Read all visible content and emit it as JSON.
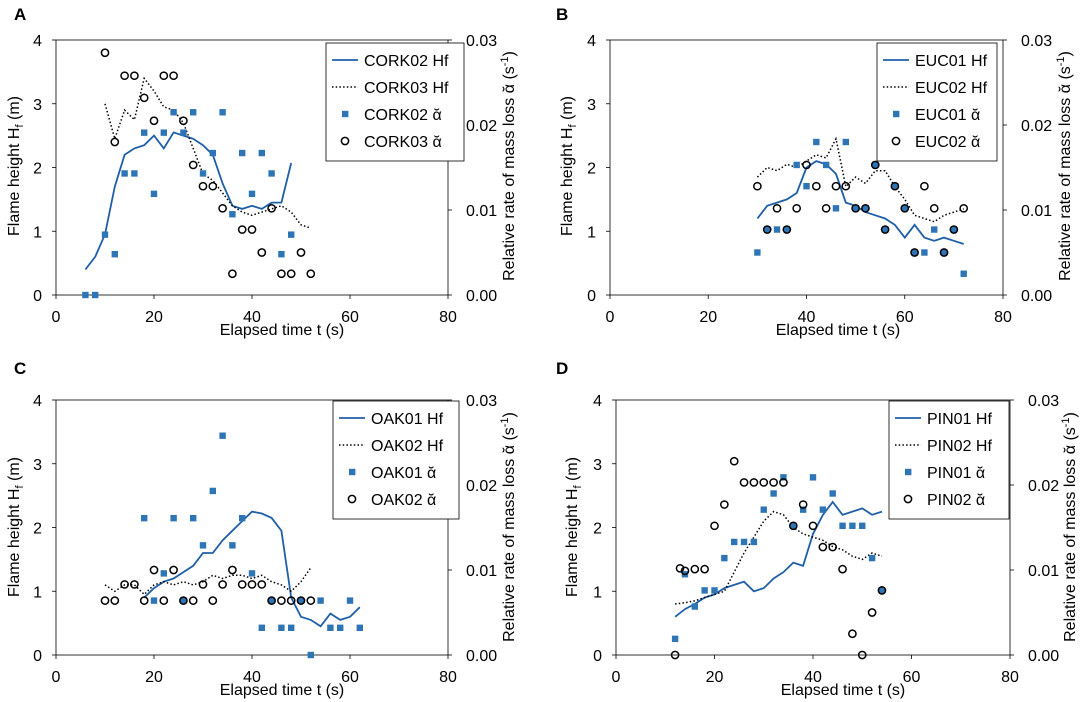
{
  "chart_data": [
    {
      "panel_label": "A",
      "type": "line+scatter",
      "xlabel": "Elapsed time t (s)",
      "ylabel_left": "Flame height H",
      "ylabel_left_sub": "f",
      "ylabel_left_unit": " (m)",
      "ylabel_right": "Relative rate of mass loss ᾰ (s",
      "ylabel_right_sup": "-1",
      "ylabel_right_end": ")",
      "xlim": [
        0,
        80
      ],
      "xticks": [
        0,
        20,
        40,
        60,
        80
      ],
      "ylim_left": [
        0,
        4
      ],
      "yticks_left": [
        0,
        1,
        2,
        3,
        4
      ],
      "ylim_right": [
        0,
        0.03
      ],
      "yticks_right": [
        "0.00",
        "0.01",
        "0.02",
        "0.03"
      ],
      "legend": [
        "CORK02 Hf",
        "CORK03 Hf",
        "CORK02 ᾰ",
        "CORK03 ᾰ"
      ],
      "series": [
        {
          "name": "CORK02 Hf",
          "style": "solid",
          "axis": "left",
          "x": [
            6,
            8,
            10,
            12,
            14,
            16,
            18,
            20,
            22,
            24,
            26,
            28,
            30,
            32,
            34,
            36,
            38,
            40,
            42,
            44,
            46,
            48
          ],
          "y": [
            0.4,
            0.6,
            0.95,
            1.7,
            2.2,
            2.3,
            2.35,
            2.5,
            2.3,
            2.55,
            2.5,
            2.45,
            2.35,
            2.2,
            1.75,
            1.4,
            1.35,
            1.4,
            1.35,
            1.45,
            1.45,
            2.07
          ]
        },
        {
          "name": "CORK03 Hf",
          "style": "dotted",
          "axis": "left",
          "x": [
            10,
            12,
            14,
            16,
            18,
            20,
            22,
            24,
            26,
            28,
            30,
            32,
            34,
            36,
            38,
            40,
            42,
            44,
            46,
            48,
            50,
            52
          ],
          "y": [
            3.0,
            2.45,
            2.9,
            2.75,
            3.4,
            3.2,
            2.95,
            2.9,
            2.7,
            2.3,
            1.9,
            1.8,
            1.6,
            1.4,
            1.3,
            1.25,
            1.3,
            1.35,
            1.4,
            1.3,
            1.1,
            1.05
          ]
        },
        {
          "name": "CORK02 ᾰ",
          "style": "square",
          "axis": "right",
          "x": [
            6,
            8,
            10,
            12,
            14,
            16,
            18,
            20,
            22,
            24,
            26,
            28,
            30,
            32,
            34,
            36,
            38,
            40,
            42,
            44,
            46,
            48
          ],
          "y": [
            0,
            0,
            0.0071,
            0.0048,
            0.0143,
            0.0143,
            0.0191,
            0.0119,
            0.0191,
            0.0215,
            0.0191,
            0.0215,
            0.0143,
            0.0167,
            0.0215,
            0.0095,
            0.0167,
            0.0119,
            0.0167,
            0.0143,
            0.0048,
            0.0071
          ]
        },
        {
          "name": "CORK03 ᾰ",
          "style": "circle",
          "axis": "right",
          "x": [
            10,
            12,
            14,
            16,
            18,
            20,
            22,
            24,
            26,
            28,
            30,
            32,
            34,
            36,
            38,
            40,
            42,
            44,
            46,
            48,
            50,
            52
          ],
          "y": [
            0.0285,
            0.018,
            0.0258,
            0.0258,
            0.0232,
            0.0205,
            0.0258,
            0.0258,
            0.0205,
            0.0153,
            0.0128,
            0.0128,
            0.0102,
            0.0025,
            0.0077,
            0.0077,
            0.005,
            0.0102,
            0.0025,
            0.0025,
            0.005,
            0.0025
          ]
        }
      ]
    },
    {
      "panel_label": "B",
      "type": "line+scatter",
      "xlabel": "Elapsed time t (s)",
      "ylabel_left": "Flame height H",
      "ylabel_left_sub": "f",
      "ylabel_left_unit": " (m)",
      "ylabel_right": "Relative rate of mass loss ᾰ (s",
      "ylabel_right_sup": "-1",
      "ylabel_right_end": ")",
      "xlim": [
        0,
        80
      ],
      "xticks": [
        0,
        20,
        40,
        60,
        80
      ],
      "ylim_left": [
        0,
        4
      ],
      "yticks_left": [
        0,
        1,
        2,
        3,
        4
      ],
      "ylim_right": [
        0,
        0.03
      ],
      "yticks_right": [
        "0.00",
        "0.01",
        "0.02",
        "0.03"
      ],
      "legend": [
        "EUC01 Hf",
        "EUC02 Hf",
        "EUC01 ᾰ",
        "EUC02 ᾰ"
      ],
      "series": [
        {
          "name": "EUC01 Hf",
          "style": "solid",
          "axis": "left",
          "x": [
            30,
            32,
            34,
            36,
            38,
            40,
            42,
            44,
            46,
            48,
            50,
            52,
            54,
            56,
            58,
            60,
            62,
            64,
            66,
            68,
            70,
            72
          ],
          "y": [
            1.2,
            1.4,
            1.45,
            1.5,
            1.6,
            2.0,
            2.1,
            2.05,
            1.9,
            1.45,
            1.4,
            1.3,
            1.25,
            1.2,
            1.1,
            0.9,
            1.1,
            0.9,
            0.85,
            0.9,
            0.85,
            0.8
          ]
        },
        {
          "name": "EUC02 Hf",
          "style": "dotted",
          "axis": "left",
          "x": [
            30,
            32,
            34,
            36,
            38,
            40,
            42,
            44,
            46,
            48,
            50,
            52,
            54,
            56,
            58,
            60,
            62,
            64,
            66,
            68,
            70,
            72
          ],
          "y": [
            1.85,
            2.0,
            1.95,
            2.05,
            2.0,
            2.1,
            2.2,
            2.15,
            2.45,
            1.7,
            1.85,
            1.75,
            1.95,
            1.95,
            1.7,
            1.5,
            1.25,
            1.2,
            1.15,
            1.25,
            1.3,
            1.35
          ]
        },
        {
          "name": "EUC01 ᾰ",
          "style": "square",
          "axis": "right",
          "x": [
            30,
            32,
            34,
            36,
            38,
            40,
            42,
            44,
            46,
            48,
            50,
            52,
            54,
            56,
            58,
            60,
            62,
            64,
            66,
            68,
            70,
            72
          ],
          "y": [
            0.005,
            0.0077,
            0.0077,
            0.0077,
            0.0153,
            0.0128,
            0.018,
            0.0153,
            0.0102,
            0.018,
            0.0102,
            0.0102,
            0.0153,
            0.0077,
            0.0128,
            0.0102,
            0.005,
            0.005,
            0.0077,
            0.005,
            0.0077,
            0.0025
          ]
        },
        {
          "name": "EUC02 ᾰ",
          "style": "circle",
          "axis": "right",
          "x": [
            30,
            32,
            34,
            36,
            38,
            40,
            42,
            44,
            46,
            48,
            50,
            52,
            54,
            56,
            58,
            60,
            62,
            64,
            66,
            68,
            70,
            72
          ],
          "y": [
            0.0128,
            0.0077,
            0.0102,
            0.0077,
            0.0102,
            0.0153,
            0.0128,
            0.0102,
            0.0128,
            0.0128,
            0.0102,
            0.0102,
            0.0153,
            0.0077,
            0.0128,
            0.0102,
            0.005,
            0.0128,
            0.0102,
            0.005,
            0.0077,
            0.0102
          ]
        }
      ]
    },
    {
      "panel_label": "C",
      "type": "line+scatter",
      "xlabel": "Elapsed time t (s)",
      "ylabel_left": "Flame height H",
      "ylabel_left_sub": "f",
      "ylabel_left_unit": " (m)",
      "ylabel_right": "Relative rate of mass loss ᾰ (s",
      "ylabel_right_sup": "-1",
      "ylabel_right_end": ")",
      "xlim": [
        0,
        80
      ],
      "xticks": [
        0,
        20,
        40,
        60,
        80
      ],
      "ylim_left": [
        0,
        4
      ],
      "yticks_left": [
        0,
        1,
        2,
        3,
        4
      ],
      "ylim_right": [
        0,
        0.03
      ],
      "yticks_right": [
        "0.00",
        "0.01",
        "0.02",
        "0.03"
      ],
      "legend": [
        "OAK01 Hf",
        "OAK02 Hf",
        "OAK01 ᾰ",
        "OAK02 ᾰ"
      ],
      "series": [
        {
          "name": "OAK01 Hf",
          "style": "solid",
          "axis": "left",
          "x": [
            18,
            20,
            22,
            24,
            26,
            28,
            30,
            32,
            34,
            36,
            38,
            40,
            42,
            44,
            46,
            48,
            50,
            52,
            54,
            56,
            58,
            60,
            62
          ],
          "y": [
            0.9,
            1.05,
            1.15,
            1.2,
            1.3,
            1.4,
            1.6,
            1.6,
            1.8,
            1.95,
            2.1,
            2.25,
            2.22,
            2.15,
            1.95,
            0.9,
            0.6,
            0.55,
            0.45,
            0.65,
            0.55,
            0.6,
            0.75
          ]
        },
        {
          "name": "OAK02 Hf",
          "style": "dotted",
          "axis": "left",
          "x": [
            10,
            12,
            14,
            16,
            18,
            20,
            22,
            24,
            26,
            28,
            30,
            32,
            34,
            36,
            38,
            40,
            42,
            44,
            46,
            48,
            50,
            52
          ],
          "y": [
            1.1,
            1.0,
            1.1,
            1.1,
            0.95,
            1.1,
            1.15,
            1.1,
            1.15,
            1.1,
            1.15,
            1.25,
            1.2,
            1.25,
            1.25,
            1.2,
            1.25,
            1.15,
            1.1,
            1.0,
            1.15,
            1.37
          ]
        },
        {
          "name": "OAK01 ᾰ",
          "style": "square",
          "axis": "right",
          "x": [
            18,
            20,
            22,
            24,
            26,
            28,
            30,
            32,
            34,
            36,
            38,
            40,
            42,
            44,
            46,
            48,
            50,
            52,
            54,
            56,
            58,
            60,
            62
          ],
          "y": [
            0.0161,
            0.0064,
            0.0096,
            0.0161,
            0.0064,
            0.0161,
            0.0129,
            0.0193,
            0.0258,
            0.0129,
            0.0161,
            0.0096,
            0.0032,
            0.0064,
            0.0032,
            0.0032,
            0.0064,
            0,
            0.0064,
            0.0032,
            0.0032,
            0.0064,
            0.0032
          ]
        },
        {
          "name": "OAK02 ᾰ",
          "style": "circle",
          "axis": "right",
          "x": [
            10,
            12,
            14,
            16,
            18,
            20,
            22,
            24,
            26,
            28,
            30,
            32,
            34,
            36,
            38,
            40,
            42,
            44,
            46,
            48,
            50,
            52
          ],
          "y": [
            0.0064,
            0.0064,
            0.0083,
            0.0083,
            0.0064,
            0.01,
            0.0064,
            0.01,
            0.0064,
            0.0064,
            0.0083,
            0.0064,
            0.0083,
            0.01,
            0.0083,
            0.0083,
            0.0083,
            0.0064,
            0.0064,
            0.0064,
            0.0064,
            0.0064
          ]
        }
      ]
    },
    {
      "panel_label": "D",
      "type": "line+scatter",
      "xlabel": "Elapsed time t (s)",
      "ylabel_left": "Flame height H",
      "ylabel_left_sub": "f",
      "ylabel_left_unit": " (m)",
      "ylabel_right": "Relative rate of mass loss ᾰ (s",
      "ylabel_right_sup": "-1",
      "ylabel_right_end": ")",
      "xlim": [
        0,
        80
      ],
      "xticks": [
        0,
        20,
        40,
        60,
        80
      ],
      "ylim_left": [
        0,
        4
      ],
      "yticks_left": [
        0,
        1,
        2,
        3,
        4
      ],
      "ylim_right": [
        0,
        0.03
      ],
      "yticks_right": [
        "0.00",
        "0.01",
        "0.02",
        "0.03"
      ],
      "legend": [
        "PIN01 Hf",
        "PIN02 Hf",
        "PIN01 ᾰ",
        "PIN02 ᾰ"
      ],
      "series": [
        {
          "name": "PIN01 Hf",
          "style": "solid",
          "axis": "left",
          "x": [
            12,
            14,
            16,
            18,
            20,
            22,
            24,
            26,
            28,
            30,
            32,
            34,
            36,
            38,
            40,
            42,
            44,
            46,
            48,
            50,
            52,
            54
          ],
          "y": [
            0.6,
            0.72,
            0.8,
            0.9,
            0.95,
            1.05,
            1.1,
            1.15,
            1.0,
            1.05,
            1.2,
            1.3,
            1.45,
            1.4,
            1.9,
            2.2,
            2.4,
            2.2,
            2.25,
            2.3,
            2.2,
            2.25
          ]
        },
        {
          "name": "PIN02 Hf",
          "style": "dotted",
          "axis": "left",
          "x": [
            12,
            14,
            16,
            18,
            20,
            22,
            24,
            26,
            28,
            30,
            32,
            34,
            36,
            38,
            40,
            42,
            44,
            46,
            48,
            50,
            52,
            54
          ],
          "y": [
            0.8,
            0.82,
            0.85,
            0.9,
            0.95,
            1.0,
            1.3,
            1.6,
            1.85,
            2.1,
            2.25,
            2.2,
            2.0,
            1.9,
            1.85,
            1.8,
            1.7,
            1.65,
            1.55,
            1.5,
            1.6,
            1.55
          ]
        },
        {
          "name": "PIN01 ᾰ",
          "style": "square",
          "axis": "right",
          "x": [
            12,
            14,
            16,
            18,
            20,
            22,
            24,
            26,
            28,
            30,
            32,
            34,
            36,
            38,
            40,
            42,
            44,
            46,
            48,
            50,
            52,
            54
          ],
          "y": [
            0.0019,
            0.0095,
            0.0057,
            0.0076,
            0.0076,
            0.0114,
            0.0133,
            0.0133,
            0.0133,
            0.0171,
            0.019,
            0.0209,
            0.0152,
            0.0171,
            0.0209,
            0.0171,
            0.019,
            0.0152,
            0.0152,
            0.0152,
            0.0114,
            0.0076
          ]
        },
        {
          "name": "PIN02 ᾰ",
          "style": "circle",
          "axis": "right",
          "x": [
            12,
            13,
            14,
            16,
            18,
            20,
            22,
            24,
            26,
            28,
            30,
            32,
            34,
            36,
            38,
            40,
            42,
            44,
            46,
            48,
            50,
            52,
            54
          ],
          "y": [
            0,
            0.0102,
            0.0099,
            0.0101,
            0.0101,
            0.0152,
            0.0177,
            0.0228,
            0.0203,
            0.0203,
            0.0203,
            0.0203,
            0.0203,
            0.0152,
            0.0177,
            0.0152,
            0.0127,
            0.0127,
            0.0101,
            0.0025,
            0,
            0.005,
            0.0076
          ]
        }
      ]
    }
  ]
}
